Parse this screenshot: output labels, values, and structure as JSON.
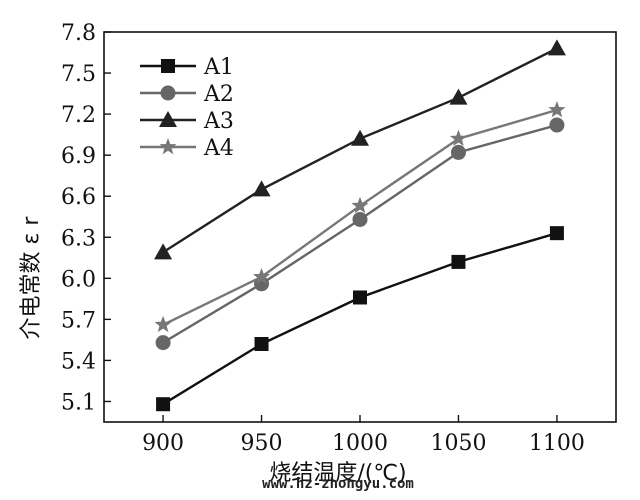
{
  "chart_data": {
    "type": "line",
    "xlabel": "烧结温度/(℃)",
    "ylabel": "介电常数 ε r",
    "x": [
      900,
      950,
      1000,
      1050,
      1100
    ],
    "xlim": [
      870,
      1130
    ],
    "ylim": [
      4.95,
      7.8
    ],
    "xticks": [
      "900",
      "950",
      "1000",
      "1050",
      "1100"
    ],
    "yticks": [
      "5.1",
      "5.4",
      "5.7",
      "6.0",
      "6.3",
      "6.6",
      "6.9",
      "7.2",
      "7.5",
      "7.8"
    ],
    "ytick_values": [
      5.1,
      5.4,
      5.7,
      6.0,
      6.3,
      6.6,
      6.9,
      7.2,
      7.5,
      7.8
    ],
    "legend_position": "top-left",
    "grid": false,
    "series": [
      {
        "name": "A1",
        "marker": "square",
        "color": "#111111",
        "values": [
          5.08,
          5.52,
          5.86,
          6.12,
          6.33
        ]
      },
      {
        "name": "A2",
        "marker": "circle",
        "color": "#666666",
        "values": [
          5.53,
          5.96,
          6.43,
          6.92,
          7.12
        ]
      },
      {
        "name": "A3",
        "marker": "triangle",
        "color": "#222222",
        "values": [
          6.19,
          6.65,
          7.02,
          7.32,
          7.68
        ]
      },
      {
        "name": "A4",
        "marker": "star",
        "color": "#777777",
        "values": [
          5.66,
          6.01,
          6.53,
          7.02,
          7.23
        ]
      }
    ]
  },
  "watermark": "www.hz-zhongyu.com"
}
